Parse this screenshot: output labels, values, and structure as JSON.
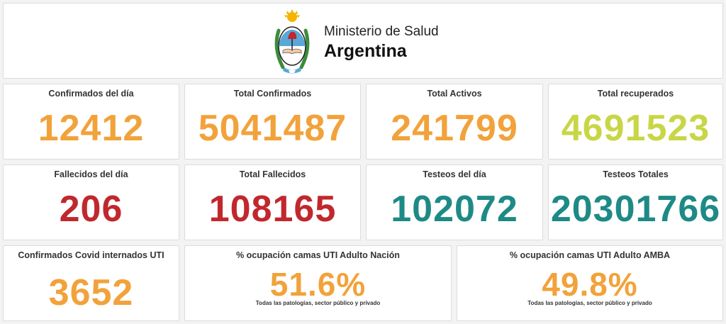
{
  "header": {
    "line1": "Ministerio de Salud",
    "line2": "Argentina",
    "emblem_icon": "argentina-coat-of-arms-icon"
  },
  "colors": {
    "orange": "#f2a23a",
    "lime": "#c8d646",
    "red": "#c0282d",
    "teal": "#1e8a86"
  },
  "stats": {
    "confirmados_dia": {
      "label": "Confirmados del día",
      "value": "12412"
    },
    "total_confirmados": {
      "label": "Total Confirmados",
      "value": "5041487"
    },
    "total_activos": {
      "label": "Total Activos",
      "value": "241799"
    },
    "total_recuperados": {
      "label": "Total recuperados",
      "value": "4691523"
    },
    "fallecidos_dia": {
      "label": "Fallecidos del día",
      "value": "206"
    },
    "total_fallecidos": {
      "label": "Total Fallecidos",
      "value": "108165"
    },
    "testeos_dia": {
      "label": "Testeos del día",
      "value": "102072"
    },
    "testeos_totales": {
      "label": "Testeos Totales",
      "value": "20301766"
    },
    "internados_uti": {
      "label": "Confirmados Covid internados UTI",
      "value": "3652"
    },
    "ocupacion_nacion": {
      "label": "% ocupación camas UTI Adulto Nación",
      "value": "51.6%",
      "note": "Todas las patologías, sector público y privado"
    },
    "ocupacion_amba": {
      "label": "% ocupación camas UTI Adulto AMBA",
      "value": "49.8%",
      "note": "Todas las patologías, sector público y privado"
    }
  }
}
